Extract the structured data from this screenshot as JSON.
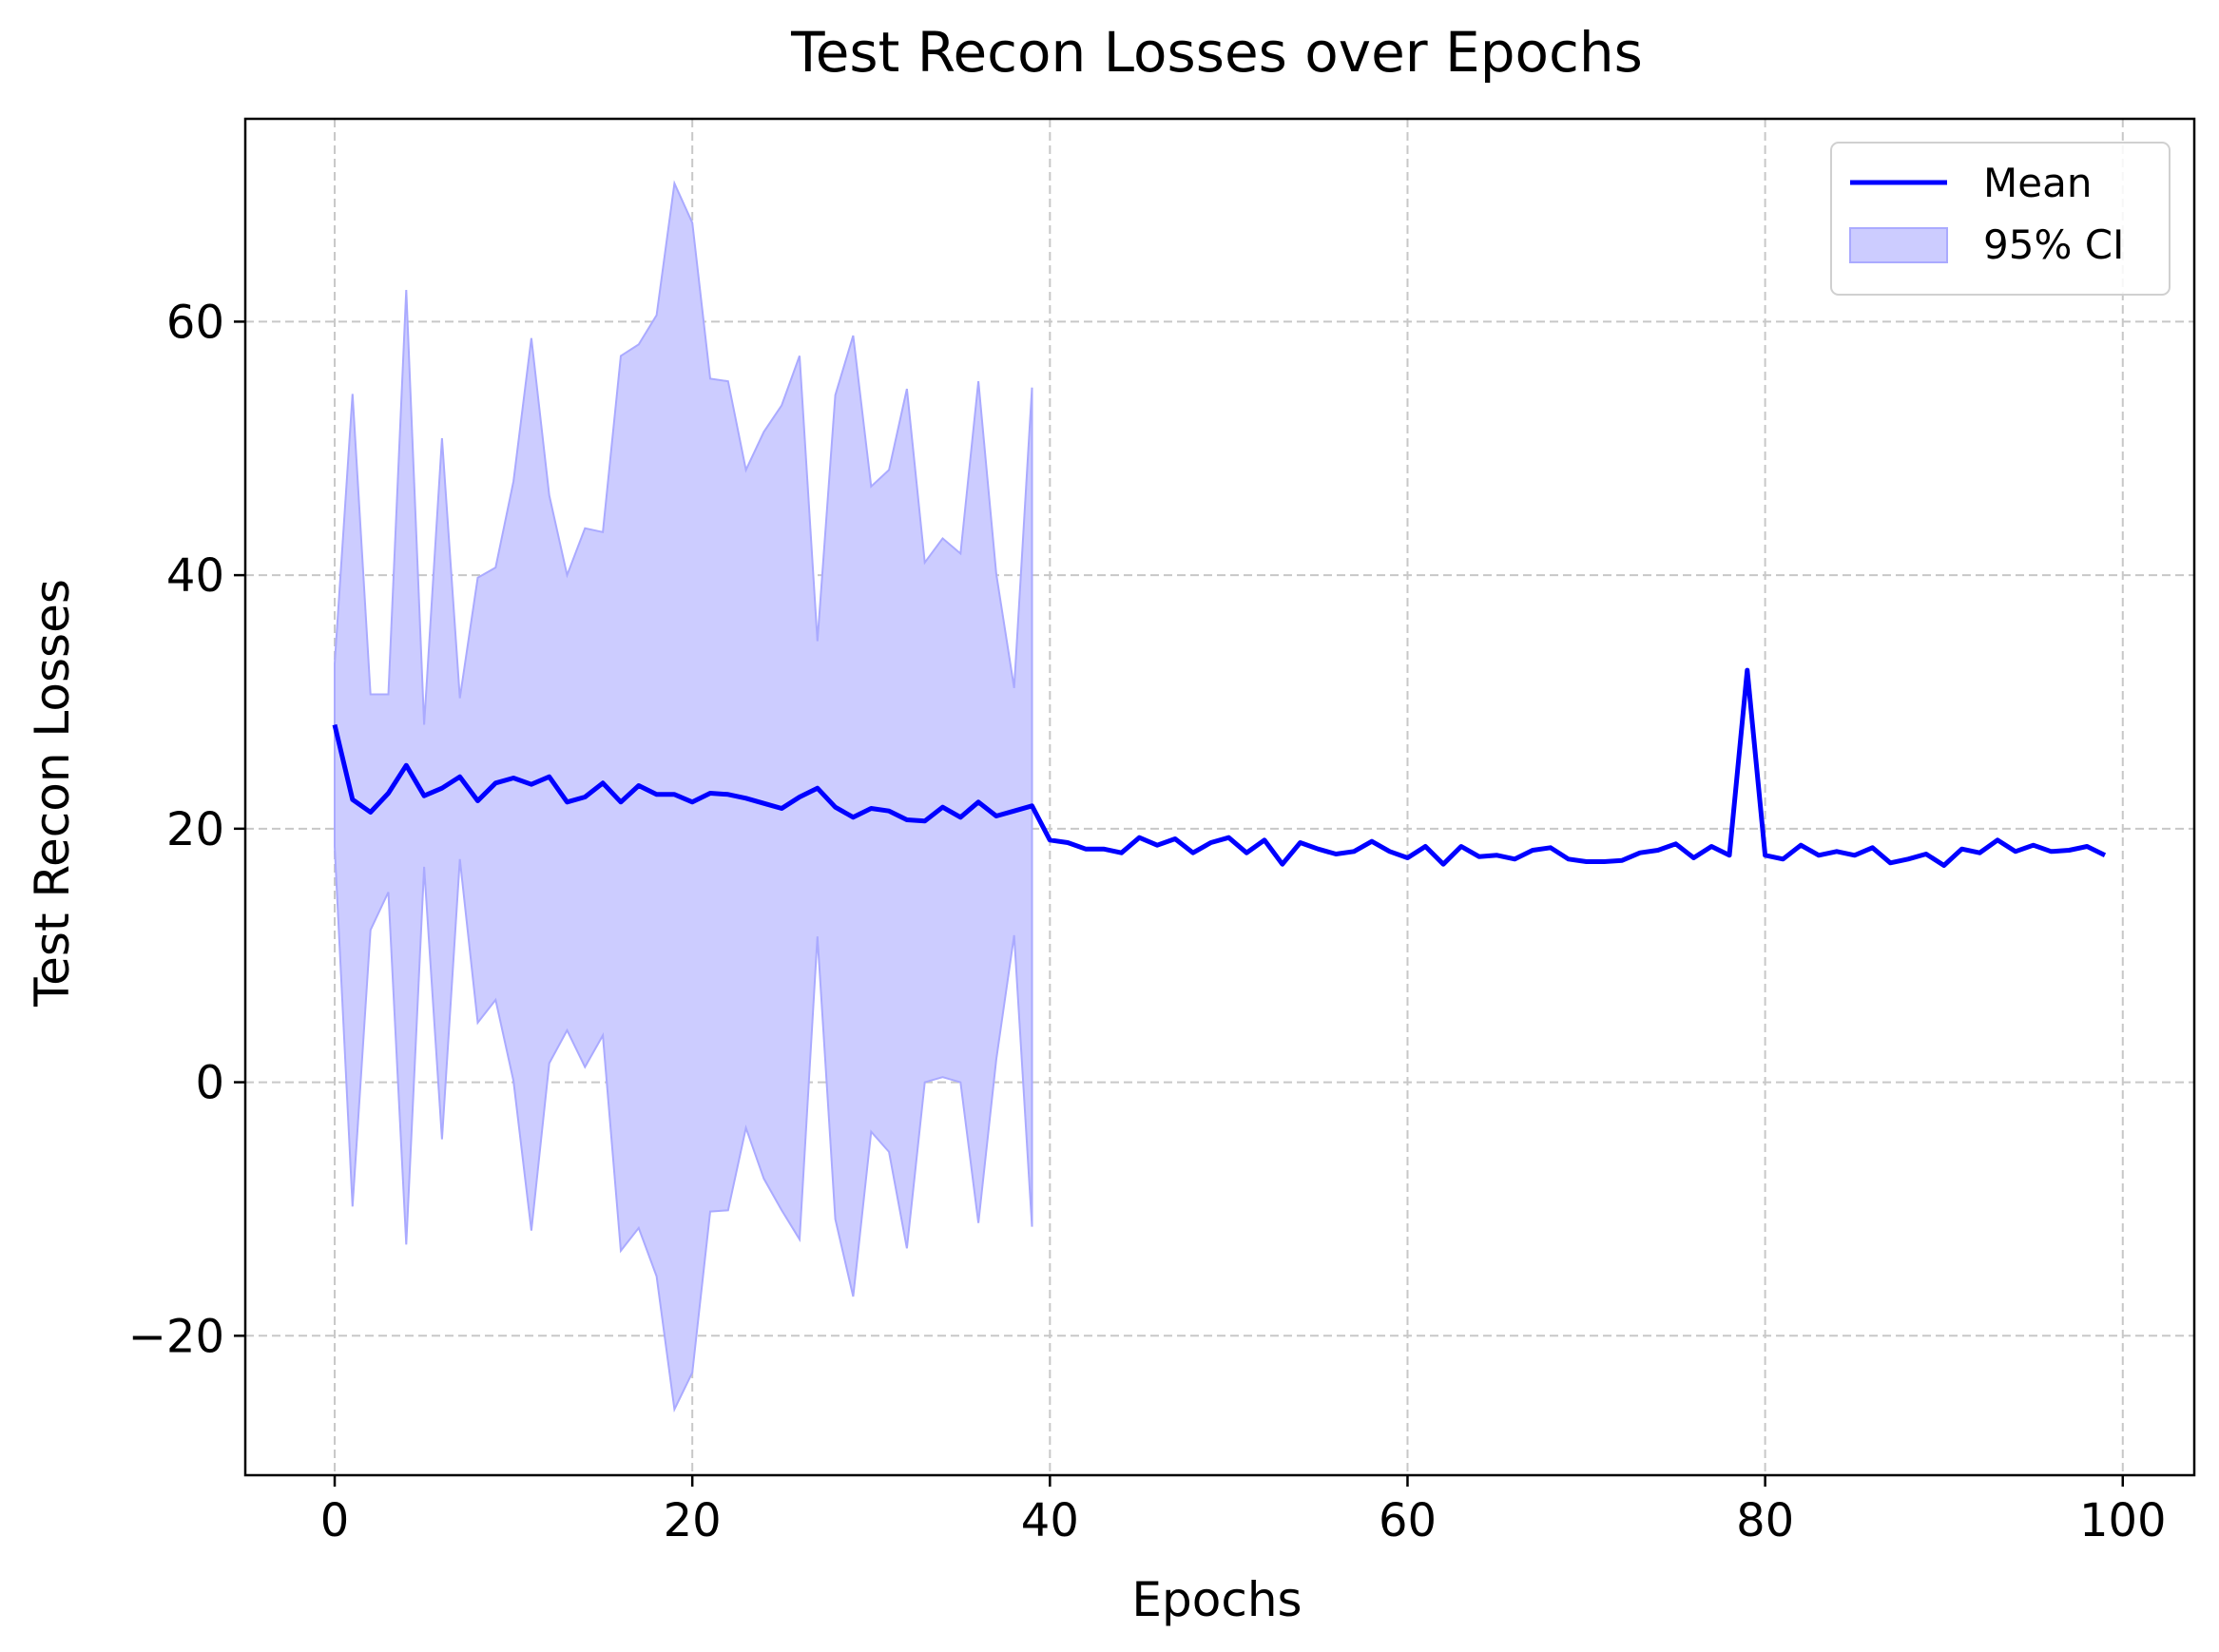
{
  "chart_data": {
    "type": "line",
    "title": "Test Recon Losses over Epochs",
    "xlabel": "Epochs",
    "ylabel": "Test Recon Losses",
    "xlim": [
      -5,
      104
    ],
    "ylim": [
      -31,
      76
    ],
    "xticks": [
      0,
      20,
      40,
      60,
      80,
      100
    ],
    "yticks": [
      -20,
      0,
      20,
      40,
      60
    ],
    "ytick_labels": [
      "−20",
      "0",
      "20",
      "40",
      "60"
    ],
    "grid": true,
    "grid_style": "dashed",
    "legend_position": "top-right",
    "colors": {
      "line": "#0000ff",
      "band_fill": "#ccccff",
      "band_edge": "#aaaaff",
      "grid": "#c8c8c8"
    },
    "series": [
      {
        "name": "Mean",
        "type": "line",
        "x": [
          0,
          1,
          2,
          3,
          4,
          5,
          6,
          7,
          8,
          9,
          10,
          11,
          12,
          13,
          14,
          15,
          16,
          17,
          18,
          19,
          20,
          21,
          22,
          23,
          24,
          25,
          26,
          27,
          28,
          29,
          30,
          31,
          32,
          33,
          34,
          35,
          36,
          37,
          38,
          39,
          40,
          41,
          42,
          43,
          44,
          45,
          46,
          47,
          48,
          49,
          50,
          51,
          52,
          53,
          54,
          55,
          56,
          57,
          58,
          59,
          60,
          61,
          62,
          63,
          64,
          65,
          66,
          67,
          68,
          69,
          70,
          71,
          72,
          73,
          74,
          75,
          76,
          77,
          78,
          79,
          80,
          81,
          82,
          83,
          84,
          85,
          86,
          87,
          88,
          89,
          90,
          91,
          92,
          93,
          94,
          95,
          96,
          97,
          98,
          99
        ],
        "y": [
          28.2,
          22.3,
          21.3,
          22.8,
          25.0,
          22.6,
          23.2,
          24.1,
          22.2,
          23.6,
          24.0,
          23.5,
          24.1,
          22.1,
          22.5,
          23.6,
          22.1,
          23.4,
          22.7,
          22.7,
          22.1,
          22.8,
          22.7,
          22.4,
          22.0,
          21.6,
          22.5,
          23.2,
          21.7,
          20.9,
          21.6,
          21.4,
          20.7,
          20.6,
          21.7,
          20.9,
          22.1,
          21.0,
          21.4,
          21.8,
          19.1,
          18.9,
          18.4,
          18.4,
          18.1,
          19.3,
          18.7,
          19.2,
          18.1,
          18.9,
          19.3,
          18.1,
          19.1,
          17.2,
          18.9,
          18.4,
          18.0,
          18.2,
          19.0,
          18.2,
          17.7,
          18.6,
          17.2,
          18.6,
          17.8,
          17.9,
          17.6,
          18.3,
          18.5,
          17.6,
          17.4,
          17.4,
          17.5,
          18.1,
          18.3,
          18.8,
          17.7,
          18.6,
          17.9,
          32.5,
          17.9,
          17.6,
          18.7,
          17.9,
          18.2,
          17.9,
          18.5,
          17.3,
          17.6,
          18.0,
          17.1,
          18.4,
          18.1,
          19.1,
          18.2,
          18.7,
          18.2,
          18.3,
          18.6,
          17.9
        ]
      },
      {
        "name": "95% CI",
        "type": "band",
        "x": [
          0,
          1,
          2,
          3,
          4,
          5,
          6,
          7,
          8,
          9,
          10,
          11,
          12,
          13,
          14,
          15,
          16,
          17,
          18,
          19,
          20,
          21,
          22,
          23,
          24,
          25,
          26,
          27,
          28,
          29,
          30,
          31,
          32,
          33,
          34,
          35,
          36,
          37,
          38,
          39
        ],
        "upper": [
          33.0,
          54.3,
          30.6,
          30.6,
          62.5,
          28.2,
          50.8,
          30.3,
          39.8,
          40.6,
          47.4,
          58.7,
          46.3,
          40.0,
          43.7,
          43.4,
          57.3,
          58.2,
          60.5,
          70.9,
          67.8,
          55.5,
          55.3,
          48.3,
          51.3,
          53.4,
          57.3,
          34.8,
          54.2,
          58.9,
          47.0,
          48.3,
          54.7,
          41.0,
          42.9,
          41.7,
          55.3,
          40.1,
          31.1,
          54.8
        ],
        "lower": [
          18.6,
          -9.8,
          12.0,
          15.0,
          -12.8,
          17.0,
          -4.5,
          17.6,
          4.7,
          6.5,
          0.1,
          -11.7,
          1.5,
          4.1,
          1.2,
          3.7,
          -13.3,
          -11.5,
          -15.3,
          -25.8,
          -22.9,
          -10.2,
          -10.1,
          -3.6,
          -7.6,
          -10.1,
          -12.4,
          11.5,
          -10.8,
          -16.9,
          -3.9,
          -5.5,
          -13.1,
          0.0,
          0.4,
          0.0,
          -11.1,
          1.8,
          11.6,
          -11.4
        ]
      }
    ]
  }
}
